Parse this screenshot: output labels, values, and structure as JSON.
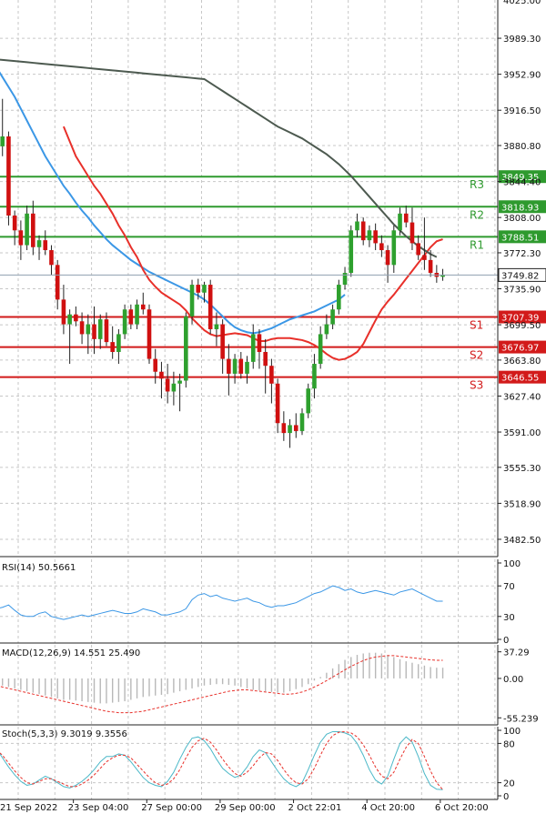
{
  "colors": {
    "background": "#ffffff",
    "grid": "#c7c7c7",
    "border": "#222222",
    "candle_up": "#2ea02e",
    "candle_down": "#d01010",
    "wick": "#222222",
    "ma_fast": "#e8302a",
    "ma_mid": "#3b97e6",
    "ma_slow": "#4d5a50",
    "resistance": "#2e9a2e",
    "support": "#d21a1a",
    "price_line": "#8fa0b0",
    "rsi_line": "#3b97e6",
    "macd_hist": "#b8b8b8",
    "macd_signal": "#e8302a",
    "stoch_main": "#4bb8c8",
    "stoch_signal": "#e8302a"
  },
  "chart_data": {
    "type": "candlestick",
    "instrument_timeframe": "H4",
    "price_axis": {
      "ylim": [
        3465.0,
        4028.0
      ],
      "ticks": [
        3989.3,
        3952.9,
        3916.5,
        3880.8,
        3844.4,
        3808.0,
        3772.3,
        3735.9,
        3699.5,
        3663.8,
        3627.4,
        3591.0,
        3555.3,
        3518.9,
        3482.5
      ],
      "tick_labels": [
        "3989.30",
        "3952.90",
        "3916.50",
        "3880.80",
        "3844.40",
        "3808.00",
        "3772.30",
        "3735.90",
        "3699.50",
        "3663.80",
        "3627.40",
        "3591.00",
        "3555.30",
        "3518.90",
        "3482.50"
      ],
      "top_partial_label": "4025.00",
      "current_price": 3749.82,
      "current_price_label": "3749.82"
    },
    "time_axis": {
      "labels": [
        "21 Sep 2022",
        "23 Sep 04:00",
        "27 Sep 00:00",
        "29 Sep 00:00",
        "2 Oct 22:01",
        "4 Oct 20:00",
        "6 Oct 20:00"
      ],
      "label_bar_index": [
        -1,
        12,
        24,
        36,
        48,
        60,
        72
      ]
    },
    "levels": [
      {
        "tag": "R3",
        "price": 3849.35,
        "label": "3849.35",
        "kind": "resistance"
      },
      {
        "tag": "R2",
        "price": 3818.93,
        "label": "3818.93",
        "kind": "resistance"
      },
      {
        "tag": "R1",
        "price": 3788.51,
        "label": "3788.51",
        "kind": "resistance"
      },
      {
        "tag": "S1",
        "price": 3707.39,
        "label": "3707.39",
        "kind": "support"
      },
      {
        "tag": "S2",
        "price": 3676.97,
        "label": "3676.97",
        "kind": "support"
      },
      {
        "tag": "S3",
        "price": 3646.55,
        "label": "3646.55",
        "kind": "support"
      }
    ],
    "candles": [
      {
        "o": 3880,
        "h": 3895,
        "l": 3855,
        "c": 3880
      },
      {
        "o": 3880,
        "h": 3928,
        "l": 3870,
        "c": 3890
      },
      {
        "o": 3890,
        "h": 3895,
        "l": 3800,
        "c": 3810
      },
      {
        "o": 3810,
        "h": 3815,
        "l": 3780,
        "c": 3795
      },
      {
        "o": 3795,
        "h": 3805,
        "l": 3765,
        "c": 3780
      },
      {
        "o": 3780,
        "h": 3820,
        "l": 3775,
        "c": 3812
      },
      {
        "o": 3812,
        "h": 3825,
        "l": 3770,
        "c": 3778
      },
      {
        "o": 3778,
        "h": 3790,
        "l": 3765,
        "c": 3785
      },
      {
        "o": 3785,
        "h": 3795,
        "l": 3770,
        "c": 3775
      },
      {
        "o": 3775,
        "h": 3780,
        "l": 3750,
        "c": 3760
      },
      {
        "o": 3760,
        "h": 3765,
        "l": 3715,
        "c": 3725
      },
      {
        "o": 3725,
        "h": 3740,
        "l": 3690,
        "c": 3700
      },
      {
        "o": 3700,
        "h": 3715,
        "l": 3660,
        "c": 3710
      },
      {
        "o": 3710,
        "h": 3718,
        "l": 3698,
        "c": 3703
      },
      {
        "o": 3703,
        "h": 3712,
        "l": 3680,
        "c": 3690
      },
      {
        "o": 3690,
        "h": 3710,
        "l": 3670,
        "c": 3700
      },
      {
        "o": 3700,
        "h": 3718,
        "l": 3670,
        "c": 3685
      },
      {
        "o": 3685,
        "h": 3710,
        "l": 3675,
        "c": 3705
      },
      {
        "o": 3705,
        "h": 3712,
        "l": 3678,
        "c": 3682
      },
      {
        "o": 3682,
        "h": 3698,
        "l": 3665,
        "c": 3672
      },
      {
        "o": 3672,
        "h": 3695,
        "l": 3660,
        "c": 3690
      },
      {
        "o": 3690,
        "h": 3720,
        "l": 3685,
        "c": 3715
      },
      {
        "o": 3715,
        "h": 3720,
        "l": 3695,
        "c": 3700
      },
      {
        "o": 3700,
        "h": 3725,
        "l": 3695,
        "c": 3720
      },
      {
        "o": 3720,
        "h": 3732,
        "l": 3710,
        "c": 3715
      },
      {
        "o": 3715,
        "h": 3720,
        "l": 3660,
        "c": 3665
      },
      {
        "o": 3665,
        "h": 3675,
        "l": 3640,
        "c": 3652
      },
      {
        "o": 3652,
        "h": 3662,
        "l": 3625,
        "c": 3645
      },
      {
        "o": 3645,
        "h": 3660,
        "l": 3620,
        "c": 3632
      },
      {
        "o": 3632,
        "h": 3652,
        "l": 3618,
        "c": 3640
      },
      {
        "o": 3640,
        "h": 3650,
        "l": 3612,
        "c": 3643
      },
      {
        "o": 3643,
        "h": 3712,
        "l": 3636,
        "c": 3708
      },
      {
        "o": 3708,
        "h": 3745,
        "l": 3700,
        "c": 3740
      },
      {
        "o": 3740,
        "h": 3746,
        "l": 3725,
        "c": 3732
      },
      {
        "o": 3732,
        "h": 3743,
        "l": 3722,
        "c": 3740
      },
      {
        "o": 3740,
        "h": 3745,
        "l": 3690,
        "c": 3695
      },
      {
        "o": 3695,
        "h": 3712,
        "l": 3678,
        "c": 3700
      },
      {
        "o": 3700,
        "h": 3705,
        "l": 3650,
        "c": 3665
      },
      {
        "o": 3665,
        "h": 3680,
        "l": 3628,
        "c": 3650
      },
      {
        "o": 3650,
        "h": 3670,
        "l": 3640,
        "c": 3665
      },
      {
        "o": 3665,
        "h": 3672,
        "l": 3645,
        "c": 3650
      },
      {
        "o": 3650,
        "h": 3668,
        "l": 3640,
        "c": 3662
      },
      {
        "o": 3662,
        "h": 3700,
        "l": 3655,
        "c": 3690
      },
      {
        "o": 3690,
        "h": 3695,
        "l": 3655,
        "c": 3672
      },
      {
        "o": 3672,
        "h": 3685,
        "l": 3630,
        "c": 3658
      },
      {
        "o": 3658,
        "h": 3665,
        "l": 3620,
        "c": 3640
      },
      {
        "o": 3640,
        "h": 3645,
        "l": 3590,
        "c": 3600
      },
      {
        "o": 3600,
        "h": 3612,
        "l": 3582,
        "c": 3590
      },
      {
        "o": 3590,
        "h": 3604,
        "l": 3575,
        "c": 3598
      },
      {
        "o": 3598,
        "h": 3610,
        "l": 3585,
        "c": 3592
      },
      {
        "o": 3592,
        "h": 3615,
        "l": 3588,
        "c": 3610
      },
      {
        "o": 3610,
        "h": 3640,
        "l": 3605,
        "c": 3635
      },
      {
        "o": 3635,
        "h": 3670,
        "l": 3625,
        "c": 3660
      },
      {
        "o": 3660,
        "h": 3698,
        "l": 3655,
        "c": 3690
      },
      {
        "o": 3690,
        "h": 3710,
        "l": 3685,
        "c": 3700
      },
      {
        "o": 3700,
        "h": 3720,
        "l": 3695,
        "c": 3715
      },
      {
        "o": 3715,
        "h": 3745,
        "l": 3710,
        "c": 3740
      },
      {
        "o": 3740,
        "h": 3758,
        "l": 3735,
        "c": 3752
      },
      {
        "o": 3752,
        "h": 3800,
        "l": 3748,
        "c": 3795
      },
      {
        "o": 3795,
        "h": 3812,
        "l": 3788,
        "c": 3804
      },
      {
        "o": 3804,
        "h": 3808,
        "l": 3780,
        "c": 3785
      },
      {
        "o": 3785,
        "h": 3800,
        "l": 3778,
        "c": 3795
      },
      {
        "o": 3795,
        "h": 3802,
        "l": 3775,
        "c": 3782
      },
      {
        "o": 3782,
        "h": 3790,
        "l": 3768,
        "c": 3775
      },
      {
        "o": 3775,
        "h": 3780,
        "l": 3742,
        "c": 3760
      },
      {
        "o": 3760,
        "h": 3800,
        "l": 3752,
        "c": 3795
      },
      {
        "o": 3795,
        "h": 3818,
        "l": 3790,
        "c": 3812
      },
      {
        "o": 3812,
        "h": 3820,
        "l": 3798,
        "c": 3803
      },
      {
        "o": 3803,
        "h": 3818,
        "l": 3775,
        "c": 3782
      },
      {
        "o": 3782,
        "h": 3790,
        "l": 3765,
        "c": 3770
      },
      {
        "o": 3770,
        "h": 3808,
        "l": 3755,
        "c": 3765
      },
      {
        "o": 3765,
        "h": 3775,
        "l": 3748,
        "c": 3752
      },
      {
        "o": 3752,
        "h": 3760,
        "l": 3742,
        "c": 3748
      },
      {
        "o": 3748,
        "h": 3756,
        "l": 3744,
        "c": 3750
      }
    ],
    "ma_fast": [
      3900,
      3885,
      3870,
      3860,
      3850,
      3840,
      3832,
      3822,
      3812,
      3800,
      3790,
      3778,
      3768,
      3755,
      3745,
      3738,
      3732,
      3728,
      3724,
      3720,
      3714,
      3706,
      3700,
      3694,
      3690,
      3688,
      3689,
      3690,
      3691,
      3690,
      3689,
      3686,
      3683,
      3683,
      3685,
      3686,
      3686,
      3686,
      3685,
      3684,
      3682,
      3679,
      3675,
      3670,
      3666,
      3664,
      3665,
      3668,
      3672,
      3680,
      3692,
      3704,
      3715,
      3723,
      3730,
      3738,
      3746,
      3754,
      3762,
      3770,
      3778,
      3784,
      3786
    ],
    "ma_fast_start": 11,
    "ma_mid": [
      3960,
      3950,
      3940,
      3930,
      3918,
      3906,
      3894,
      3882,
      3870,
      3860,
      3850,
      3840,
      3832,
      3823,
      3815,
      3808,
      3800,
      3793,
      3786,
      3780,
      3775,
      3770,
      3765,
      3761,
      3757,
      3753,
      3750,
      3747,
      3744,
      3741,
      3738,
      3735,
      3732,
      3729,
      3725,
      3720,
      3714,
      3708,
      3702,
      3697,
      3694,
      3692,
      3691,
      3692,
      3694,
      3696,
      3699,
      3702,
      3705,
      3707,
      3709,
      3711,
      3713,
      3716,
      3719,
      3722,
      3725,
      3730
    ],
    "ma_mid_start": 0,
    "ma_slow": [
      3948,
      3944,
      3940,
      3936,
      3932,
      3928,
      3924,
      3920,
      3916,
      3912,
      3908,
      3904,
      3900,
      3897,
      3894,
      3891,
      3888,
      3884,
      3880,
      3876,
      3872,
      3867,
      3862,
      3856,
      3850,
      3843,
      3836,
      3829,
      3822,
      3815,
      3808,
      3801,
      3795,
      3789,
      3784,
      3779,
      3775,
      3771,
      3768
    ],
    "ma_slow_start": 34,
    "rsi": {
      "title": "RSI(14) 50.5661",
      "ylim": [
        0,
        100
      ],
      "ticks": [
        100,
        70,
        30,
        0
      ],
      "tick_labels": [
        "100",
        "70",
        "30",
        "0"
      ],
      "values": [
        40,
        42,
        45,
        38,
        32,
        30,
        30,
        34,
        36,
        30,
        28,
        26,
        28,
        30,
        32,
        30,
        32,
        34,
        36,
        38,
        36,
        34,
        34,
        36,
        40,
        38,
        36,
        32,
        32,
        34,
        36,
        40,
        52,
        58,
        60,
        56,
        58,
        54,
        52,
        50,
        52,
        54,
        50,
        48,
        44,
        42,
        44,
        44,
        46,
        48,
        52,
        56,
        60,
        62,
        66,
        70,
        68,
        64,
        66,
        62,
        60,
        62,
        64,
        62,
        60,
        58,
        62,
        64,
        66,
        62,
        58,
        54,
        50,
        50
      ]
    },
    "macd": {
      "title": "MACD(12,26,9) 14.551 25.490",
      "ylim": [
        -60,
        42
      ],
      "ticks": [
        37.29,
        0.0,
        -55.239
      ],
      "tick_labels": [
        "37.29",
        "0.00",
        "-55.239"
      ],
      "hist": [
        -8,
        -10,
        -12,
        -14,
        -16,
        -18,
        -20,
        -22,
        -24,
        -26,
        -28,
        -30,
        -30,
        -31,
        -32,
        -33,
        -34,
        -35,
        -35,
        -34,
        -33,
        -32,
        -30,
        -28,
        -26,
        -25,
        -24,
        -23,
        -22,
        -20,
        -18,
        -16,
        -14,
        -12,
        -10,
        -9,
        -8,
        -8,
        -9,
        -10,
        -12,
        -14,
        -16,
        -17,
        -18,
        -19,
        -20,
        -20,
        -18,
        -15,
        -12,
        -8,
        -3,
        2,
        8,
        14,
        20,
        26,
        30,
        33,
        35,
        36,
        36,
        35,
        33,
        30,
        27,
        24,
        22,
        20,
        18,
        16,
        15,
        15
      ],
      "signal": [
        -10,
        -12,
        -14,
        -16,
        -18,
        -20,
        -22,
        -24,
        -26,
        -28,
        -30,
        -32,
        -34,
        -36,
        -38,
        -40,
        -42,
        -44,
        -46,
        -47,
        -48,
        -48,
        -48,
        -47,
        -46,
        -44,
        -42,
        -40,
        -38,
        -36,
        -34,
        -32,
        -30,
        -28,
        -26,
        -24,
        -22,
        -20,
        -18,
        -17,
        -16,
        -16,
        -17,
        -18,
        -19,
        -20,
        -21,
        -22,
        -22,
        -21,
        -19,
        -16,
        -12,
        -8,
        -3,
        2,
        7,
        12,
        17,
        21,
        25,
        28,
        30,
        31,
        32,
        32,
        31,
        30,
        29,
        28,
        27,
        26,
        25.5,
        25.49
      ]
    },
    "stoch": {
      "title": "Stoch(5,3,3) 9.3019 9.3556",
      "ylim": [
        0,
        100
      ],
      "ticks": [
        100,
        80,
        20,
        0
      ],
      "tick_labels": [
        "100",
        "80",
        "20",
        "0"
      ],
      "main": [
        72,
        58,
        44,
        32,
        22,
        16,
        18,
        24,
        30,
        26,
        20,
        14,
        12,
        16,
        22,
        30,
        40,
        52,
        60,
        60,
        64,
        62,
        52,
        40,
        28,
        20,
        16,
        14,
        22,
        36,
        56,
        74,
        88,
        90,
        84,
        72,
        56,
        42,
        34,
        28,
        32,
        44,
        60,
        70,
        66,
        52,
        38,
        26,
        18,
        14,
        20,
        40,
        62,
        82,
        94,
        98,
        98,
        96,
        92,
        80,
        62,
        40,
        24,
        18,
        30,
        56,
        80,
        90,
        82,
        60,
        34,
        16,
        10,
        9.3
      ],
      "signal": [
        70,
        62,
        50,
        38,
        28,
        20,
        18,
        22,
        26,
        26,
        22,
        18,
        14,
        14,
        18,
        24,
        32,
        42,
        52,
        58,
        62,
        62,
        58,
        48,
        38,
        28,
        20,
        16,
        18,
        26,
        40,
        58,
        74,
        84,
        88,
        82,
        70,
        56,
        44,
        34,
        30,
        36,
        46,
        58,
        66,
        64,
        54,
        40,
        28,
        20,
        18,
        26,
        42,
        62,
        80,
        92,
        97,
        98,
        96,
        90,
        78,
        62,
        44,
        30,
        26,
        36,
        56,
        74,
        86,
        80,
        60,
        38,
        20,
        9.36
      ]
    }
  }
}
